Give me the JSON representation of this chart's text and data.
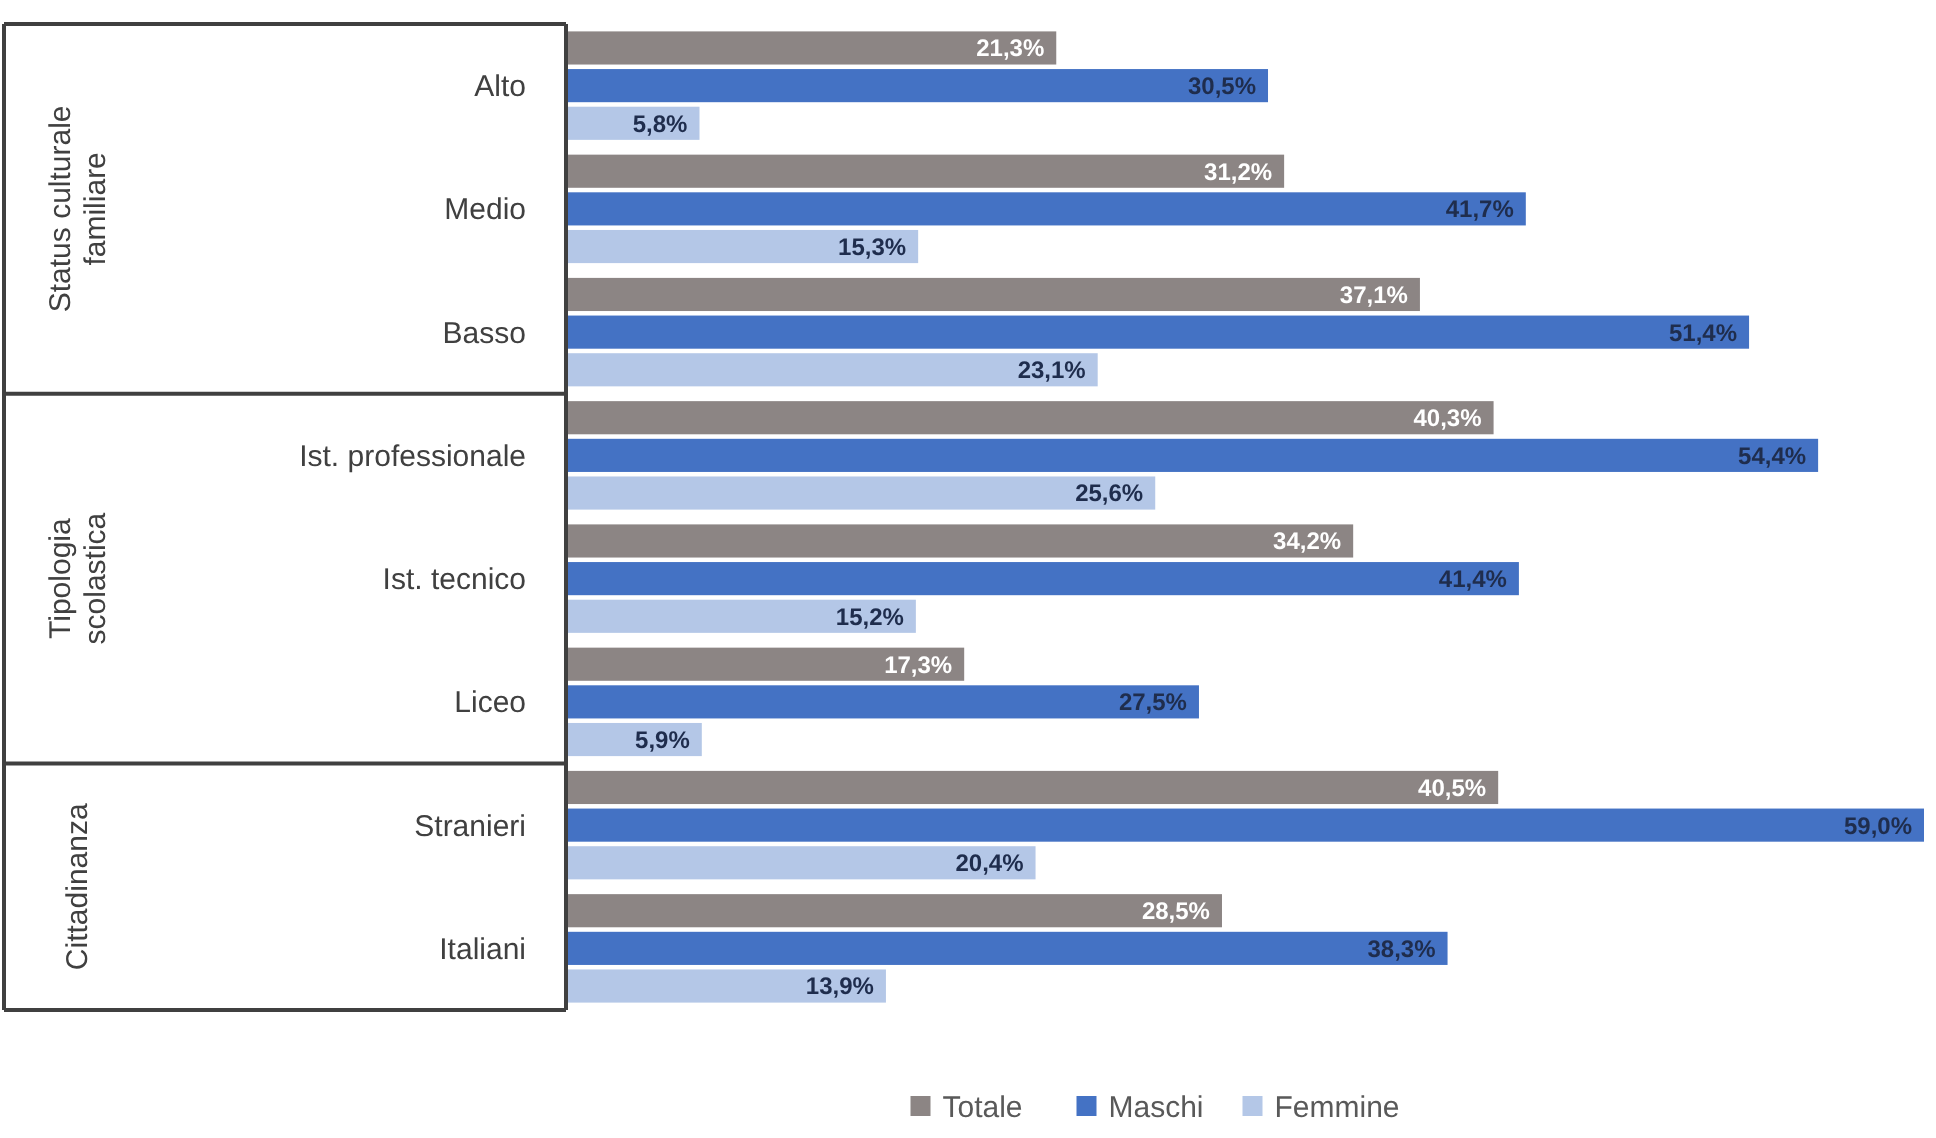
{
  "chart_data": {
    "type": "bar",
    "orientation": "horizontal",
    "categories": [
      "Alto",
      "Medio",
      "Basso",
      "Ist. professionale",
      "Ist. tecnico",
      "Liceo",
      "Stranieri",
      "Italiani"
    ],
    "annotations": [
      "Status culturale familiare",
      "Tipologia scolastica",
      "Cittadinanza"
    ],
    "series": [
      {
        "name": "Totale",
        "color": "#8c8584",
        "values": [
          21.3,
          31.2,
          37.1,
          40.3,
          34.2,
          17.3,
          40.5,
          28.5
        ],
        "value_labels": [
          "21,3%",
          "31,2%",
          "37,1%",
          "40,3%",
          "34,2%",
          "17,3%",
          "40,5%",
          "28,5%"
        ]
      },
      {
        "name": "Maschi",
        "color": "#4472c4",
        "values": [
          30.5,
          41.7,
          51.4,
          54.4,
          41.4,
          27.5,
          59.0,
          38.3
        ],
        "value_labels": [
          "30,5%",
          "41,7%",
          "51,4%",
          "54,4%",
          "41,4%",
          "27,5%",
          "59,0%",
          "38,3%"
        ]
      },
      {
        "name": "Femmine",
        "color": "#b4c7e7",
        "values": [
          5.8,
          15.3,
          23.1,
          25.6,
          15.2,
          5.9,
          20.4,
          13.9
        ],
        "value_labels": [
          "5,8%",
          "15,3%",
          "23,1%",
          "25,6%",
          "15,2%",
          "5,9%",
          "20,4%",
          "13,9%"
        ]
      }
    ],
    "legend": "bottom"
  }
}
